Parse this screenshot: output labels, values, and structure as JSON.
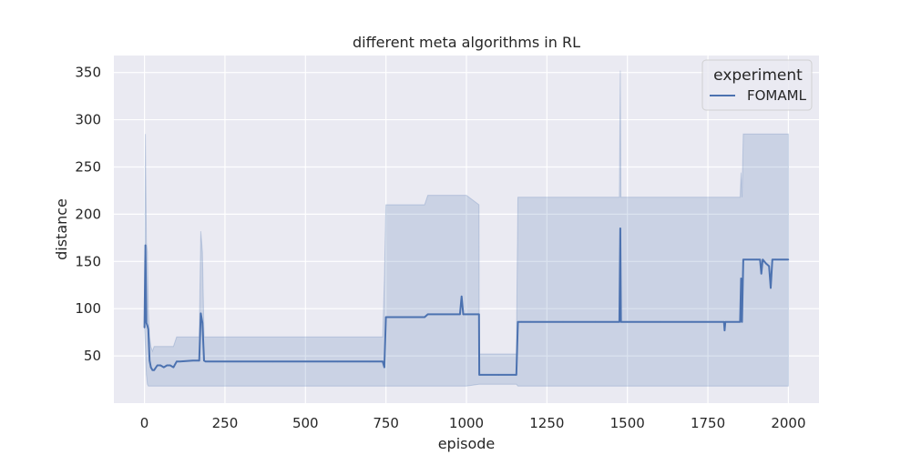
{
  "chart_data": {
    "type": "line",
    "title": "different meta algorithms in RL",
    "xlabel": "episode",
    "ylabel": "distance",
    "xlim": [
      -95,
      2095
    ],
    "ylim": [
      0,
      368
    ],
    "xticks": [
      0,
      250,
      500,
      750,
      1000,
      1250,
      1500,
      1750,
      2000
    ],
    "yticks": [
      50,
      100,
      150,
      200,
      250,
      300,
      350
    ],
    "grid": true,
    "legend": {
      "title": "experiment",
      "placement": "top-right"
    },
    "series": [
      {
        "name": "FOMAML",
        "color": "#4c72b0",
        "x": [
          0,
          3,
          6,
          9,
          12,
          16,
          20,
          25,
          30,
          40,
          50,
          60,
          70,
          80,
          90,
          100,
          105,
          110,
          150,
          170,
          175,
          180,
          185,
          190,
          200,
          300,
          400,
          500,
          600,
          700,
          740,
          745,
          750,
          760,
          800,
          870,
          880,
          980,
          985,
          990,
          1000,
          1039,
          1040,
          1100,
          1155,
          1160,
          1170,
          1200,
          1300,
          1400,
          1475,
          1478,
          1480,
          1485,
          1500,
          1600,
          1700,
          1800,
          1802,
          1804,
          1850,
          1853,
          1856,
          1860,
          1900,
          1912,
          1916,
          1920,
          1930,
          1940,
          1945,
          1950,
          1960,
          2000
        ],
        "y": [
          80,
          167,
          85,
          82,
          78,
          45,
          38,
          35,
          35,
          40,
          40,
          38,
          40,
          40,
          38,
          44,
          44,
          44,
          45,
          45,
          95,
          85,
          45,
          44,
          44,
          44,
          44,
          44,
          44,
          44,
          44,
          38,
          91,
          91,
          91,
          91,
          94,
          94,
          113,
          94,
          94,
          94,
          30,
          30,
          30,
          86,
          86,
          86,
          86,
          86,
          86,
          185,
          86,
          86,
          86,
          86,
          86,
          86,
          77,
          86,
          86,
          132,
          86,
          152,
          152,
          152,
          137,
          152,
          148,
          145,
          122,
          152,
          152,
          152
        ],
        "lower": [
          80,
          60,
          30,
          20,
          18,
          18,
          18,
          18,
          18,
          18,
          18,
          18,
          18,
          18,
          18,
          18,
          18,
          18,
          18,
          18,
          18,
          18,
          18,
          18,
          18,
          18,
          18,
          18,
          18,
          18,
          18,
          18,
          18,
          18,
          18,
          18,
          18,
          18,
          18,
          18,
          18,
          20,
          20,
          20,
          20,
          18,
          18,
          18,
          18,
          18,
          18,
          18,
          18,
          18,
          18,
          18,
          18,
          18,
          18,
          18,
          18,
          18,
          18,
          18,
          18,
          18,
          18,
          18,
          18,
          18,
          18,
          18,
          18,
          18
        ],
        "upper": [
          90,
          285,
          170,
          160,
          100,
          70,
          60,
          55,
          60,
          60,
          60,
          60,
          60,
          60,
          60,
          70,
          70,
          70,
          70,
          70,
          182,
          160,
          70,
          70,
          70,
          70,
          70,
          70,
          70,
          70,
          70,
          130,
          210,
          210,
          210,
          210,
          220,
          220,
          220,
          220,
          220,
          210,
          52,
          52,
          52,
          218,
          218,
          218,
          218,
          218,
          218,
          352,
          218,
          218,
          218,
          218,
          218,
          218,
          218,
          218,
          218,
          244,
          218,
          285,
          285,
          285,
          285,
          285,
          285,
          285,
          285,
          285,
          285,
          285
        ]
      }
    ]
  }
}
